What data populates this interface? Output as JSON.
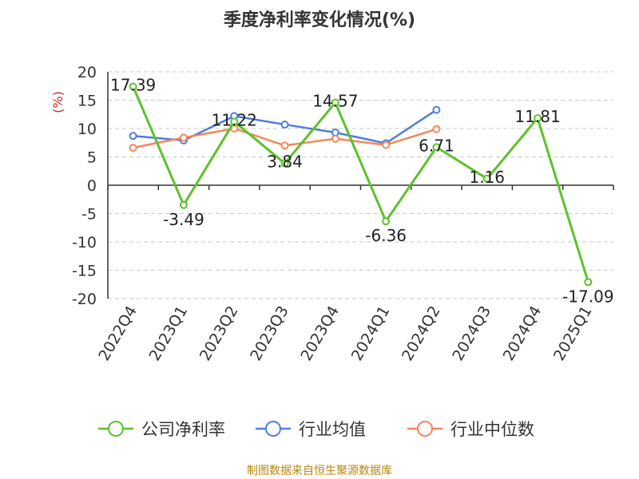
{
  "chart_data": {
    "type": "line",
    "title": "季度净利率变化情况(%)",
    "ylabel": "(%)",
    "categories": [
      "2022Q4",
      "2023Q1",
      "2023Q2",
      "2023Q3",
      "2023Q4",
      "2024Q1",
      "2024Q2",
      "2024Q3",
      "2024Q4",
      "2025Q1"
    ],
    "y_ticks": [
      "20",
      "15",
      "10",
      "5",
      "0",
      "-5",
      "-10",
      "-15",
      "-20"
    ],
    "ylim": [
      -20,
      20
    ],
    "grid": true,
    "legend_position": "bottom",
    "series": [
      {
        "name": "公司净利率",
        "color": "#5ec12c",
        "values": [
          17.39,
          -3.49,
          11.22,
          3.84,
          14.57,
          -6.36,
          6.71,
          1.16,
          11.81,
          -17.09
        ],
        "labels": [
          "17.39",
          "-3.49",
          "11.22",
          "3.84",
          "14.57",
          "-6.36",
          "6.71",
          "1.16",
          "11.81",
          "-17.09"
        ]
      },
      {
        "name": "行业均值",
        "color": "#4f7fdb",
        "values": [
          8.7,
          7.9,
          12.2,
          10.7,
          9.3,
          7.4,
          13.3,
          null,
          null,
          null
        ]
      },
      {
        "name": "行业中位数",
        "color": "#f4875a",
        "values": [
          6.6,
          8.4,
          10.0,
          7.0,
          8.2,
          7.1,
          9.9,
          null,
          null,
          null
        ]
      }
    ]
  },
  "source": "制图数据来自恒生聚源数据库"
}
